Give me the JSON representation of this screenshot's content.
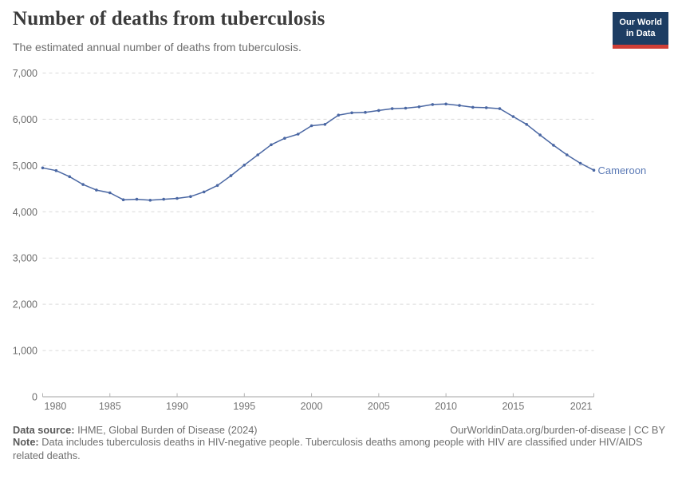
{
  "header": {
    "logo_line1": "Our World",
    "logo_line2": "in Data"
  },
  "chart_data": {
    "type": "line",
    "title": "Number of deaths from tuberculosis",
    "subtitle": "The estimated annual number of deaths from tuberculosis.",
    "xlabel": "",
    "ylabel": "",
    "ylim": [
      0,
      7000
    ],
    "yticks": [
      0,
      1000,
      2000,
      3000,
      4000,
      5000,
      6000,
      7000
    ],
    "xticks": [
      1980,
      1985,
      1990,
      1995,
      2000,
      2005,
      2010,
      2015,
      2021
    ],
    "grid": "horizontal-dashed",
    "legend_position": "end-of-line-label",
    "x": [
      1980,
      1981,
      1982,
      1983,
      1984,
      1985,
      1986,
      1987,
      1988,
      1989,
      1990,
      1991,
      1992,
      1993,
      1994,
      1995,
      1996,
      1997,
      1998,
      1999,
      2000,
      2001,
      2002,
      2003,
      2004,
      2005,
      2006,
      2007,
      2008,
      2009,
      2010,
      2011,
      2012,
      2013,
      2014,
      2015,
      2016,
      2017,
      2018,
      2019,
      2020,
      2021
    ],
    "series": [
      {
        "name": "Cameroon",
        "color": "#4a67a3",
        "values": [
          4950,
          4890,
          4760,
          4590,
          4470,
          4410,
          4260,
          4270,
          4250,
          4270,
          4290,
          4330,
          4430,
          4570,
          4780,
          5010,
          5230,
          5450,
          5590,
          5680,
          5860,
          5890,
          6090,
          6140,
          6150,
          6190,
          6230,
          6240,
          6270,
          6320,
          6330,
          6300,
          6260,
          6250,
          6230,
          6060,
          5890,
          5660,
          5440,
          5230,
          5050,
          4900
        ]
      }
    ]
  },
  "footer": {
    "source_label": "Data source:",
    "source_text": "IHME, Global Burden of Disease (2024)",
    "link": "OurWorldinData.org/burden-of-disease | CC BY",
    "note_label": "Note:",
    "note_text": "Data includes tuberculosis deaths in HIV-negative people. Tuberculosis deaths among people with HIV are classified under HIV/AIDS related deaths."
  },
  "colors": {
    "line": "#4a67a3",
    "entity_label": "#5a79b5",
    "grid": "#d9d9d9",
    "axis": "#a3a3a3",
    "tick": "#b3b3b3",
    "y_tick_text": "#6c6c6c",
    "x_tick_text": "#737373",
    "logo_bg": "#1d3d63",
    "logo_accent": "#cf3e36"
  }
}
